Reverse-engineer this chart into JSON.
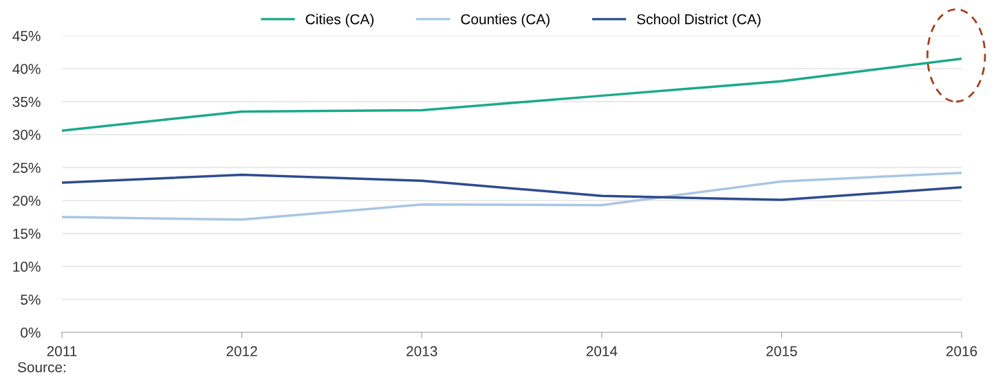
{
  "chart_data": {
    "type": "line",
    "x": [
      2011,
      2012,
      2013,
      2014,
      2015,
      2016
    ],
    "xlim": [
      2011,
      2016
    ],
    "xticks": [
      2011,
      2012,
      2013,
      2014,
      2015,
      2016
    ],
    "ylim": [
      0,
      45
    ],
    "yticks": [
      {
        "value": 0,
        "label": "0%"
      },
      {
        "value": 5,
        "label": "5%"
      },
      {
        "value": 10,
        "label": "10%"
      },
      {
        "value": 15,
        "label": "15%"
      },
      {
        "value": 20,
        "label": "20%"
      },
      {
        "value": 25,
        "label": "25%"
      },
      {
        "value": 30,
        "label": "30%"
      },
      {
        "value": 35,
        "label": "35%"
      },
      {
        "value": 40,
        "label": "40%"
      },
      {
        "value": 45,
        "label": "45%"
      }
    ],
    "series": [
      {
        "name": "Cities (CA)",
        "color": "#1aa98a",
        "values": [
          30.6,
          33.5,
          33.7,
          35.9,
          38.1,
          41.5
        ]
      },
      {
        "name": "Counties (CA)",
        "color": "#a9c6e3",
        "values": [
          17.5,
          17.1,
          19.4,
          19.3,
          22.9,
          24.2
        ]
      },
      {
        "name": "School District (CA)",
        "color": "#2d4b8e",
        "values": [
          22.7,
          23.9,
          23.0,
          20.7,
          20.1,
          22.0
        ]
      }
    ],
    "annotations": [
      "Source:"
    ],
    "grid": "y",
    "legend": "top",
    "marker": "none",
    "line_style": "solid"
  }
}
